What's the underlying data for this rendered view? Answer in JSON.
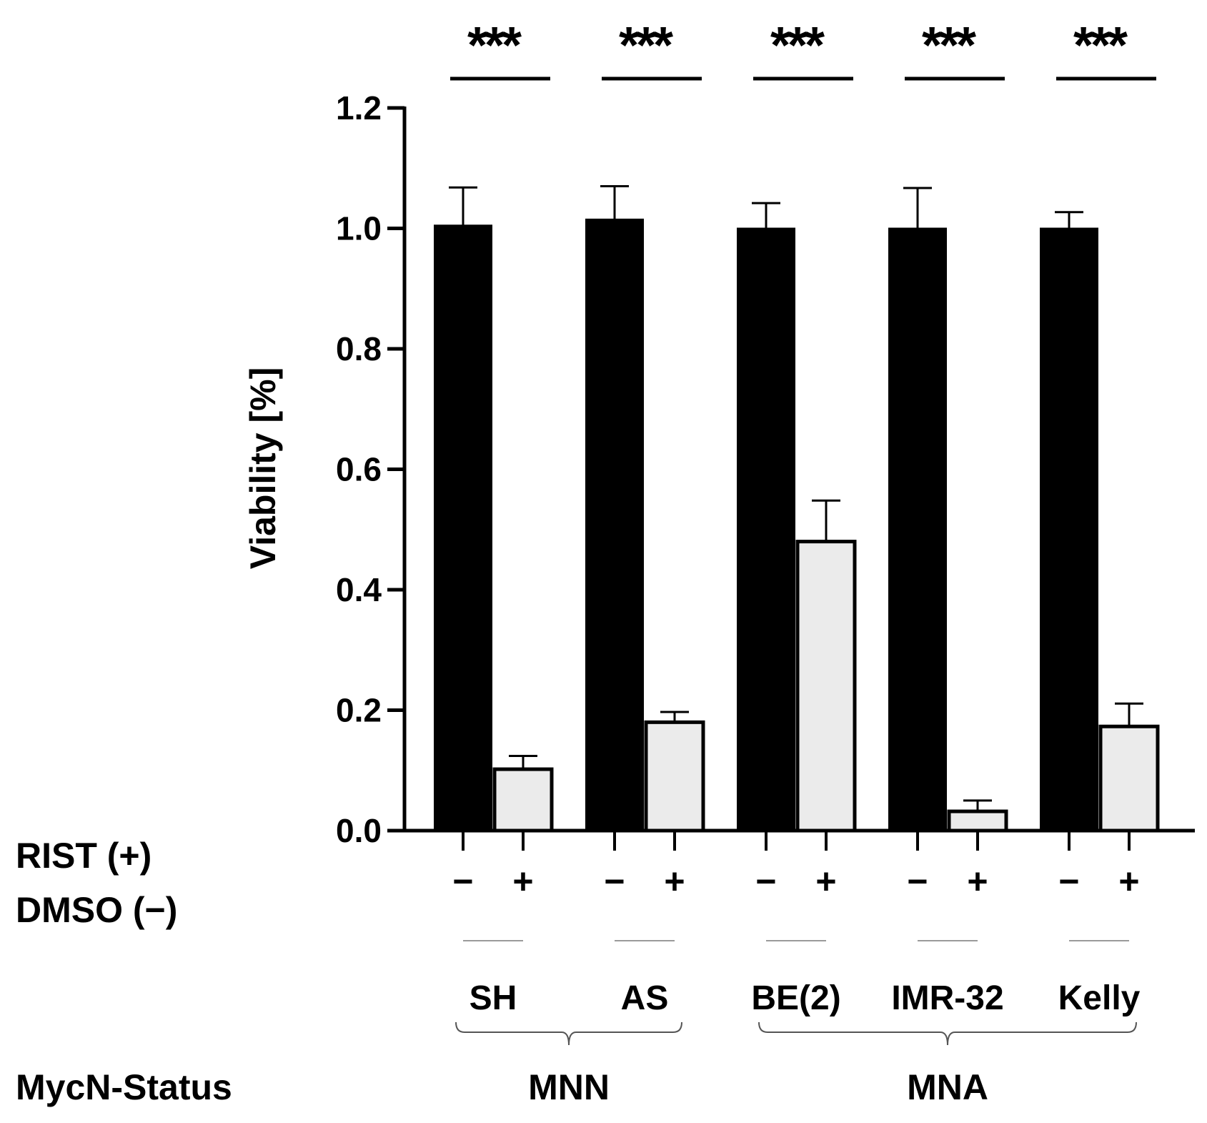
{
  "chart_data": {
    "type": "bar",
    "ylabel": "Viability [%]",
    "ylim": [
      0,
      1.2
    ],
    "yticks": [
      "0.0",
      "0.2",
      "0.4",
      "0.6",
      "0.8",
      "1.0",
      "1.2"
    ],
    "row_labels": [
      "RIST (+)",
      "DMSO (−)",
      "MycN-Status"
    ],
    "categories": [
      "SH",
      "AS",
      "BE(2)",
      "IMR-32",
      "Kelly"
    ],
    "treatment_signs": [
      "−",
      "+"
    ],
    "series": [
      {
        "name": "DMSO (−)",
        "color": "#000000",
        "values": [
          1.005,
          1.015,
          1.0,
          1.0,
          1.0
        ],
        "errors": [
          0.063,
          0.055,
          0.042,
          0.067,
          0.027
        ]
      },
      {
        "name": "RIST (+)",
        "color": "#ebebeb",
        "values": [
          0.102,
          0.18,
          0.48,
          0.032,
          0.173
        ],
        "errors": [
          0.022,
          0.017,
          0.068,
          0.018,
          0.038
        ]
      }
    ],
    "significance": [
      "***",
      "***",
      "***",
      "***",
      "***"
    ],
    "groups": [
      {
        "label": "MNN",
        "members": [
          "SH",
          "AS"
        ]
      },
      {
        "label": "MNA",
        "members": [
          "BE(2)",
          "IMR-32",
          "Kelly"
        ]
      }
    ]
  }
}
